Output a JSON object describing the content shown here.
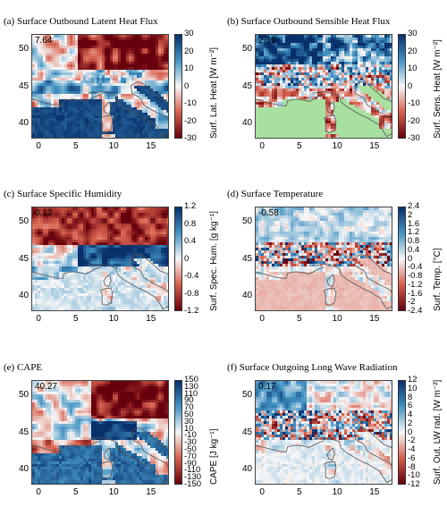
{
  "panels": [
    {
      "title": "(a) Surface Outbound Latent Heat Flux",
      "mean": "7.64",
      "colorbar": {
        "label": "Surf. Lat. Heat [W m⁻²]",
        "ticks": [
          "30",
          "20",
          "10",
          "0",
          "-10",
          "-20",
          "-30"
        ],
        "range": [
          -30,
          30
        ]
      }
    },
    {
      "title": "(b) Surface Outbound Sensible Heat Flux",
      "mean": "2.39",
      "colorbar": {
        "label": "Surf. Sens. Heat [W m⁻²]",
        "ticks": [
          "30",
          "20",
          "10",
          "0",
          "-10",
          "-20",
          "-30"
        ],
        "range": [
          -30,
          30
        ]
      }
    },
    {
      "title": "(c) Surface Specific Humidity",
      "mean": "0.12",
      "colorbar": {
        "label": "Surf. Spec. Hum. [g kg⁻¹]",
        "ticks": [
          "1.2",
          "0.8",
          "0.4",
          "0",
          "-0.4",
          "-0.8",
          "-1.2"
        ],
        "range": [
          -1.2,
          1.2
        ]
      }
    },
    {
      "title": "(d) Surface Temperature",
      "mean": "-0.58",
      "colorbar": {
        "label": "Surf. Temp. [°C]",
        "ticks": [
          "2.4",
          "2",
          "1.6",
          "1.2",
          "0.8",
          "0.4",
          "0",
          "-0.4",
          "-0.8",
          "-1.2",
          "-1.6",
          "-2",
          "-2.4"
        ],
        "range": [
          -2.4,
          2.4
        ]
      }
    },
    {
      "title": "(e) CAPE",
      "mean": "40.27",
      "colorbar": {
        "label": "CAPE [J kg⁻¹]",
        "ticks": [
          "150",
          "130",
          "110",
          "90",
          "70",
          "50",
          "30",
          "10",
          "-10",
          "-30",
          "-50",
          "-70",
          "-90",
          "-110",
          "-130",
          "-150"
        ],
        "range": [
          -150,
          150
        ]
      }
    },
    {
      "title": "(f) Surface Outgoing Long Wave Radiation",
      "mean": "0.17",
      "colorbar": {
        "label": "Surf. Out. LW rad. [W m⁻²]",
        "ticks": [
          "12",
          "10",
          "8",
          "6",
          "4",
          "2",
          "0",
          "-2",
          "-4",
          "-6",
          "-8",
          "-10",
          "-12"
        ],
        "range": [
          -12,
          12
        ]
      }
    }
  ],
  "axes": {
    "x_ticks": [
      "0",
      "5",
      "10",
      "15"
    ],
    "y_ticks": [
      "50",
      "45",
      "40"
    ],
    "x_range": [
      -1,
      17.5
    ],
    "y_range": [
      38,
      52
    ]
  },
  "colors": {
    "positive": "#08306b",
    "negative": "#67000d",
    "neutral": "#f7f7f7",
    "land_mask": "#a8e0a0",
    "coast": "#555555"
  }
}
